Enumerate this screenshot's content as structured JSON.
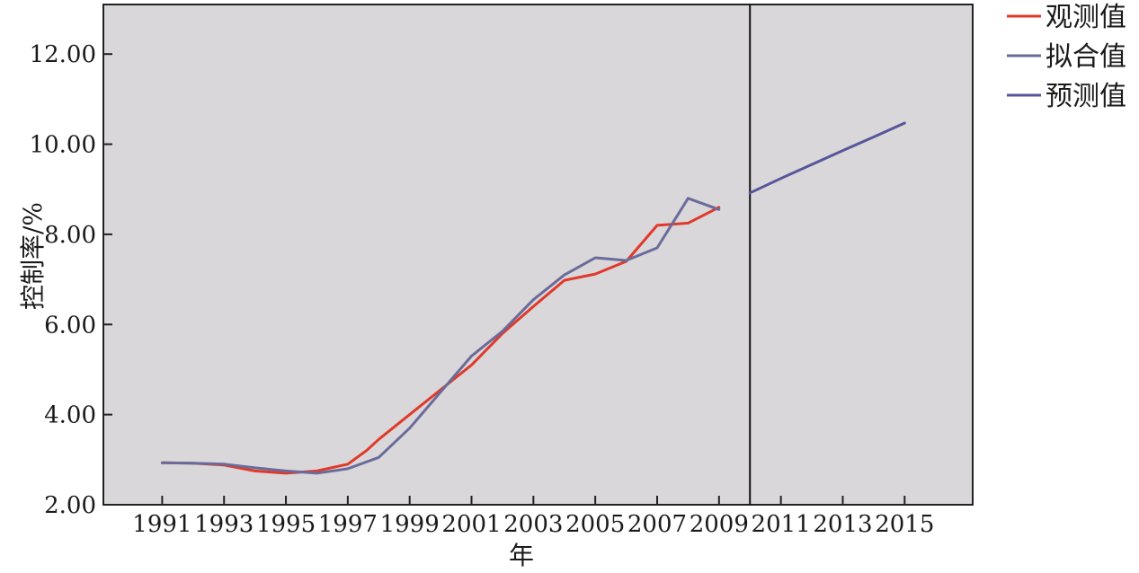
{
  "chart_data": {
    "type": "line",
    "title": "",
    "xlabel": "年",
    "ylabel": "控制率/%",
    "ylim": [
      2.0,
      13.1
    ],
    "xlim": [
      1989.1,
      2017.2
    ],
    "yticks": [
      "2.00",
      "4.00",
      "6.00",
      "8.00",
      "10.00",
      "12.00"
    ],
    "ytick_values": [
      2,
      4,
      6,
      8,
      10,
      12
    ],
    "xticks": [
      "1991",
      "1993",
      "1995",
      "1997",
      "1999",
      "2001",
      "2003",
      "2005",
      "2007",
      "2009",
      "2011",
      "2013",
      "2015"
    ],
    "xtick_values": [
      1991,
      1993,
      1995,
      1997,
      1999,
      2001,
      2003,
      2005,
      2007,
      2009,
      2011,
      2013,
      2015
    ],
    "divider_x": 2010.0,
    "grid": false,
    "legend_position": "top-right outside plot",
    "plot_background": "#d9d7da",
    "series": [
      {
        "name": "观测值",
        "color": "#e0392a",
        "x": [
          1991,
          1992,
          1993,
          1994,
          1995,
          1996,
          1997,
          1997.6,
          1998,
          1999,
          2000,
          2001,
          2002,
          2003,
          2004,
          2004.5,
          2005,
          2006,
          2007,
          2008,
          2009
        ],
        "y": [
          2.93,
          2.92,
          2.88,
          2.75,
          2.7,
          2.75,
          2.9,
          3.2,
          3.45,
          4.0,
          4.55,
          5.1,
          5.8,
          6.4,
          6.98,
          7.05,
          7.12,
          7.4,
          8.2,
          8.25,
          8.6
        ]
      },
      {
        "name": "拟合值",
        "color": "#6b6b9a",
        "x": [
          1991,
          1992,
          1993,
          1994,
          1995,
          1996,
          1997,
          1998,
          1999,
          2000,
          2001,
          2002,
          2003,
          2004,
          2005,
          2006,
          2007,
          2008,
          2009
        ],
        "y": [
          2.93,
          2.92,
          2.9,
          2.82,
          2.75,
          2.7,
          2.8,
          3.05,
          3.7,
          4.5,
          5.3,
          5.85,
          6.55,
          7.1,
          7.48,
          7.42,
          7.7,
          8.8,
          8.55
        ]
      },
      {
        "name": "预测值",
        "color": "#56569a",
        "x": [
          2010,
          2011,
          2012,
          2013,
          2014,
          2015
        ],
        "y": [
          8.92,
          9.24,
          9.55,
          9.86,
          10.16,
          10.47
        ]
      }
    ]
  }
}
